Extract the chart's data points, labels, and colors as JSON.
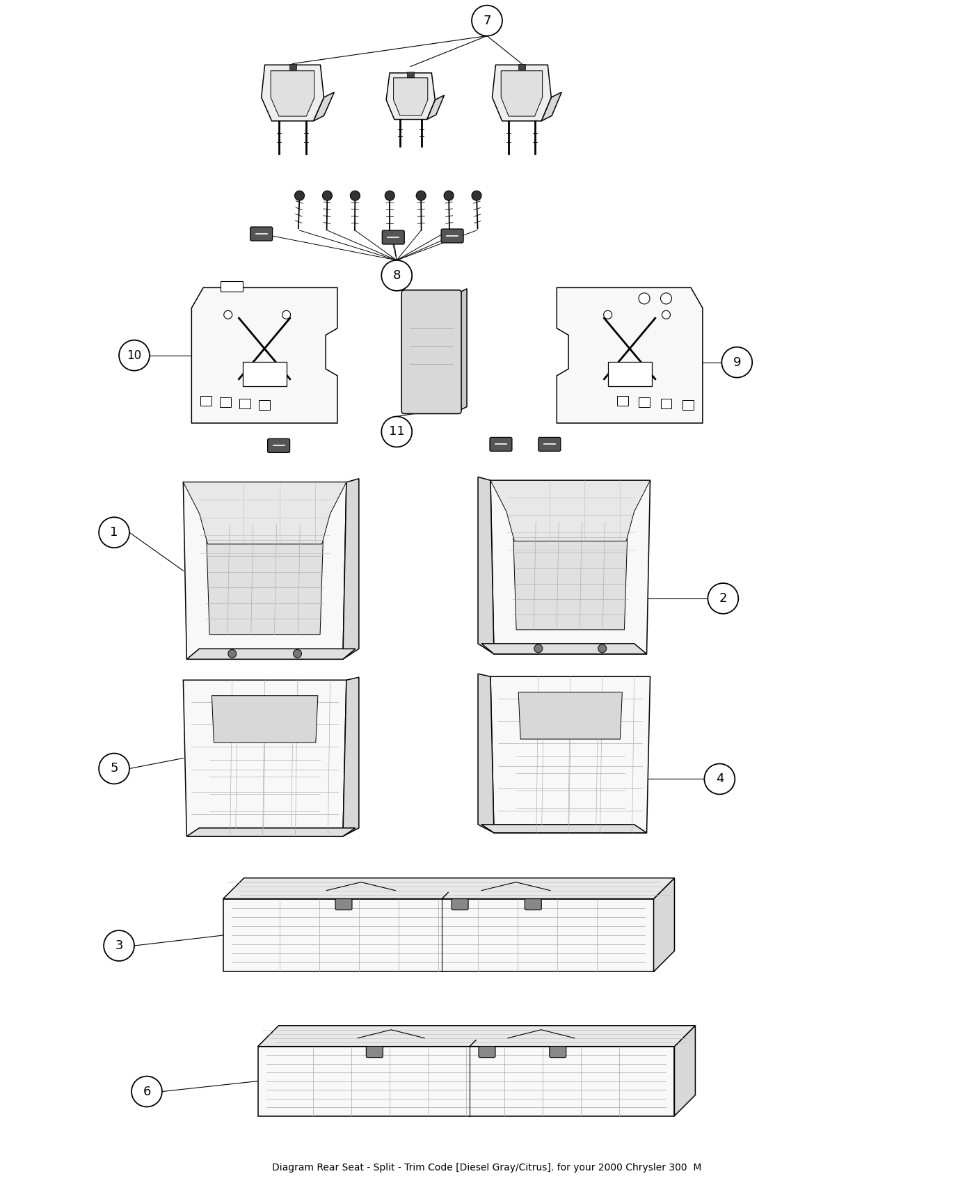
{
  "title": "Diagram Rear Seat - Split - Trim Code [Diesel Gray/Citrus]. for your 2000 Chrysler 300  M",
  "bg_color": "#ffffff",
  "line_color": "#000000",
  "fig_width": 14.0,
  "fig_height": 17.0,
  "callout_r": 0.022,
  "label_fontsize": 14,
  "title_fontsize": 10
}
